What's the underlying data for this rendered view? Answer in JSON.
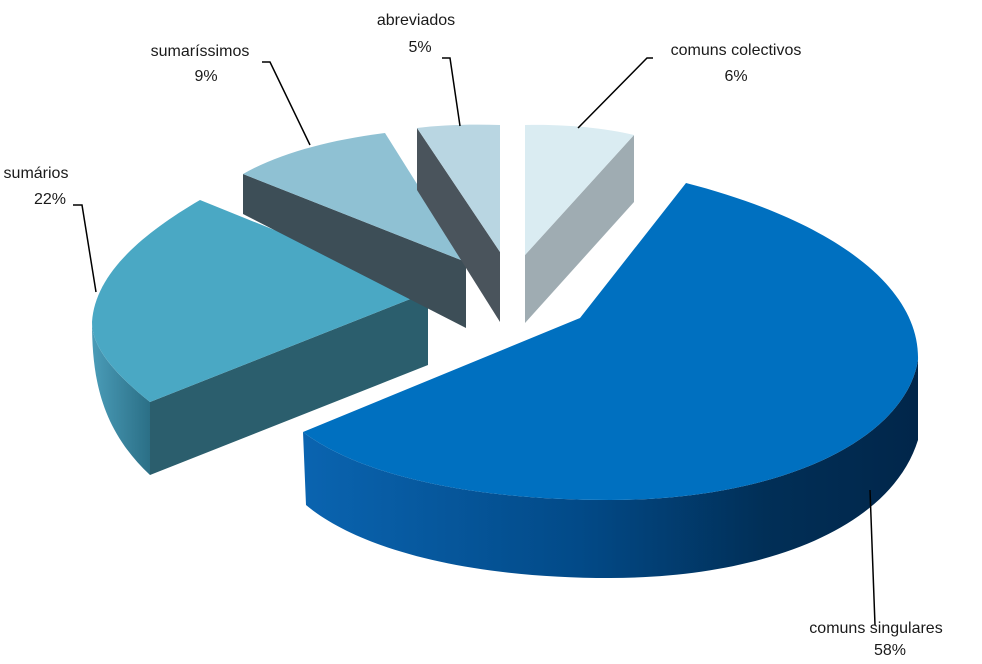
{
  "chart_data": {
    "type": "pie",
    "style": "3d-exploded",
    "categories": [
      "comuns singulares",
      "sumários",
      "sumaríssimos",
      "abreviados",
      "comuns colectivos"
    ],
    "values": [
      58,
      22,
      9,
      5,
      6
    ],
    "value_labels": [
      "58%",
      "22%",
      "9%",
      "5%",
      "6%"
    ],
    "colors": [
      "#0070c0",
      "#4aa8c4",
      "#8fc1d3",
      "#b9d6e2",
      "#daecf2"
    ],
    "legend": "none",
    "data_labels": "outside-with-leader-lines"
  }
}
